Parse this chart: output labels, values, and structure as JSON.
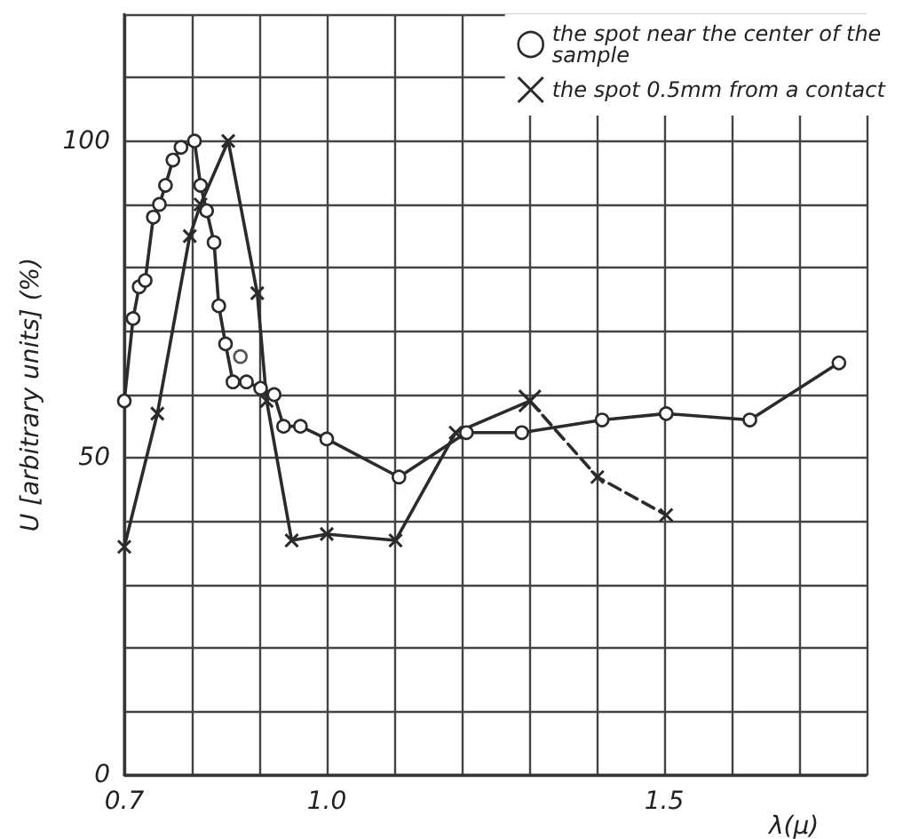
{
  "chart_data": {
    "type": "line",
    "xlabel": "λ(μ)",
    "ylabel": "U [arbitrary units] (%)",
    "xlim": [
      0.7,
      1.8
    ],
    "xticks": [
      0.7,
      {
        "value": 0.8,
        "label": null
      },
      {
        "value": 0.9,
        "label": null
      },
      {
        "value": 1.0,
        "label": "1.0"
      },
      {
        "value": 1.1,
        "label": null
      },
      {
        "value": 1.2,
        "label": null
      },
      {
        "value": 1.3,
        "label": null
      },
      {
        "value": 1.4,
        "label": null
      },
      1.5,
      {
        "value": 1.6,
        "label": null
      },
      {
        "value": 1.7,
        "label": null
      },
      {
        "value": 1.8,
        "label": null
      }
    ],
    "ylim": [
      0,
      120
    ],
    "yticks": [
      0,
      {
        "value": 10,
        "label": null
      },
      {
        "value": 20,
        "label": null
      },
      {
        "value": 30,
        "label": null
      },
      {
        "value": 40,
        "label": null
      },
      50,
      {
        "value": 60,
        "label": null
      },
      {
        "value": 70,
        "label": null
      },
      {
        "value": 80,
        "label": null
      },
      {
        "value": 90,
        "label": null
      },
      100,
      {
        "value": 110,
        "label": null
      },
      {
        "value": 120,
        "label": null
      }
    ],
    "grid": true,
    "legend": "top right",
    "series": [
      {
        "name": "the spot near the center of the sample",
        "color": "#2b2b2b",
        "marker": "circle",
        "line_style": "solid",
        "x": [
          0.7,
          0.713,
          0.722,
          0.731,
          0.743,
          0.752,
          0.761,
          0.772,
          0.784,
          0.804,
          0.813,
          0.822,
          0.833,
          0.84,
          0.85,
          0.861,
          0.881,
          0.902,
          0.922,
          0.936,
          0.961,
          1.0,
          1.107,
          1.207,
          1.289,
          1.408,
          1.503,
          1.627,
          1.759
        ],
        "values": [
          59,
          72,
          77,
          78,
          88,
          90,
          93,
          97,
          99,
          100,
          93,
          89,
          84,
          74,
          68,
          62,
          62,
          61,
          60,
          55,
          55,
          53,
          47,
          54,
          54,
          56,
          57,
          56,
          65
        ]
      },
      {
        "type": "scatter",
        "color": "#2b2b2b",
        "marker": "circle",
        "x": [
          0.872
        ],
        "values": [
          66
        ]
      },
      {
        "name": "the spot 0.5mm from a contact",
        "color": "#2b2b2b",
        "marker": "cross",
        "line_style": "solid",
        "x": [
          0.7,
          0.749,
          0.797,
          0.813,
          0.854,
          0.897,
          0.911,
          0.948,
          1.0,
          1.102,
          1.191,
          1.301
        ],
        "values": [
          36,
          57,
          85,
          90,
          100,
          76,
          59,
          37,
          38,
          37,
          54,
          59
        ]
      },
      {
        "color": "#2b2b2b",
        "marker": "cross",
        "line_style": "dashed",
        "x": [
          1.301,
          1.401,
          1.503
        ],
        "values": [
          59,
          47,
          41
        ]
      }
    ]
  }
}
